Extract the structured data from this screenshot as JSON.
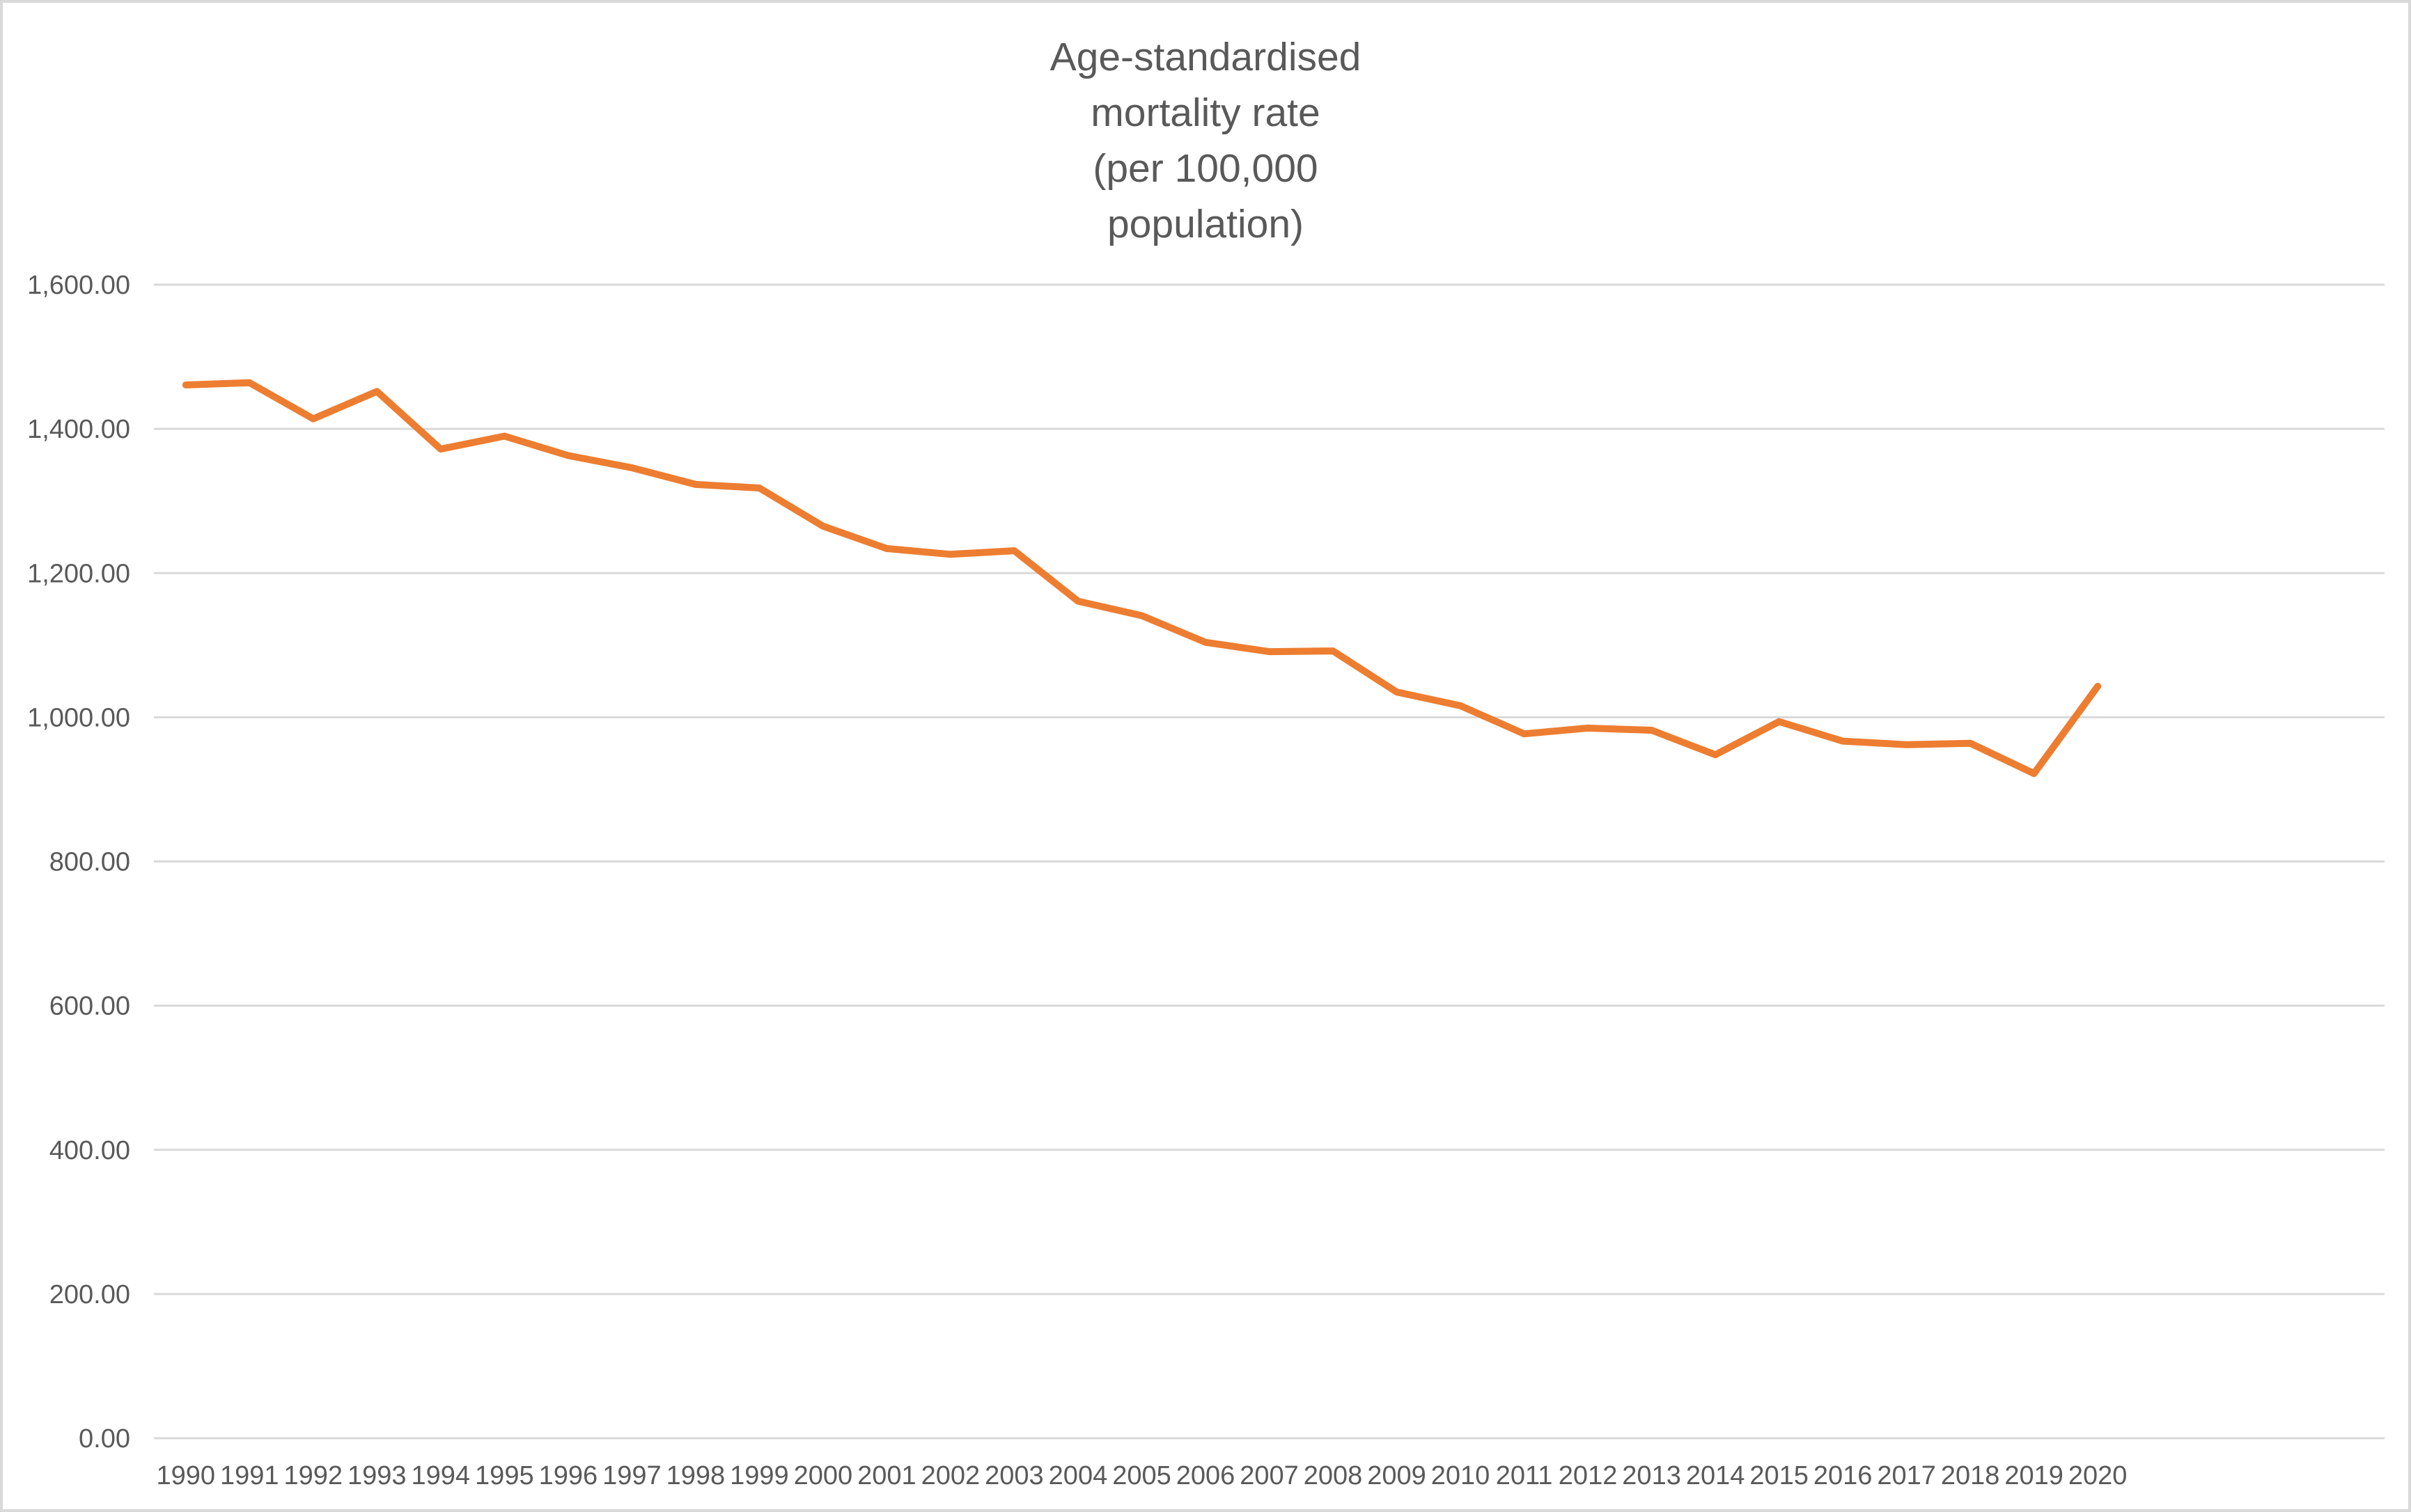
{
  "chart": {
    "title_lines": [
      "Age-standardised",
      "mortality rate",
      "(per 100,000",
      "population)"
    ]
  },
  "chart_data": {
    "type": "line",
    "title": "Age-standardised mortality rate (per 100,000 population)",
    "categories": [
      "1990",
      "1991",
      "1992",
      "1993",
      "1994",
      "1995",
      "1996",
      "1997",
      "1998",
      "1999",
      "2000",
      "2001",
      "2002",
      "2003",
      "2004",
      "2005",
      "2006",
      "2007",
      "2008",
      "2009",
      "2010",
      "2011",
      "2012",
      "2013",
      "2014",
      "2015",
      "2016",
      "2017",
      "2018",
      "2019",
      "2020"
    ],
    "series": [
      {
        "name": "Age-standardised mortality rate (per 100,000 population)",
        "values": [
          1461,
          1464,
          1414,
          1452,
          1372,
          1390,
          1363,
          1346,
          1323,
          1318,
          1265,
          1234,
          1226,
          1231,
          1161,
          1141,
          1104,
          1091,
          1092,
          1035,
          1016,
          977,
          985,
          982,
          948,
          994,
          967,
          962,
          964,
          922,
          1043
        ]
      }
    ],
    "xlabel": "",
    "ylabel": "",
    "ylim": [
      0,
      1600
    ],
    "ytick_step": 200,
    "ytick_labels": [
      "0.00",
      "200.00",
      "400.00",
      "600.00",
      "800.00",
      "1,000.00",
      "1,200.00",
      "1,400.00",
      "1,600.00"
    ],
    "grid": "horizontal",
    "legend": "none",
    "extra_empty_categories": 4,
    "colors": {
      "line": "#ED7D31",
      "text": "#595959",
      "gridline": "#D9D9D9",
      "border": "#D9D9D9",
      "background": "#FFFFFF"
    }
  }
}
